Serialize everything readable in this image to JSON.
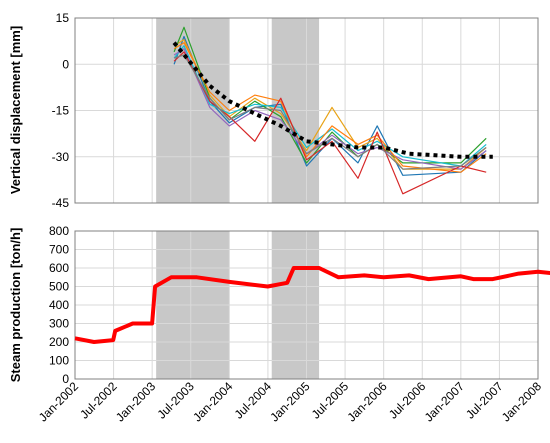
{
  "chart_data": [
    {
      "type": "line",
      "ylabel": "Vertical displacement [mm]",
      "ylim": [
        -45,
        15
      ],
      "yticks": [
        15,
        0,
        -15,
        -30,
        -45
      ],
      "xlim": [
        "2002-01-01",
        "2008-01-01"
      ],
      "grid": true,
      "shaded_periods": [
        [
          "2003-01-20",
          "2004-01-01"
        ],
        [
          "2004-07-20",
          "2005-03-01"
        ]
      ],
      "series": [
        {
          "color": "#1f77b4",
          "values": [
            [
              "2003-04-15",
              0
            ],
            [
              "2003-06-01",
              9
            ],
            [
              "2003-10-01",
              -12
            ],
            [
              "2004-01-01",
              -19
            ],
            [
              "2004-05-01",
              -14
            ],
            [
              "2004-09-01",
              -13
            ],
            [
              "2005-01-01",
              -33
            ],
            [
              "2005-05-01",
              -24
            ],
            [
              "2005-09-01",
              -32
            ],
            [
              "2005-12-01",
              -20
            ],
            [
              "2006-04-01",
              -36
            ],
            [
              "2007-01-01",
              -35
            ],
            [
              "2007-05-01",
              -28
            ]
          ]
        },
        {
          "color": "#e8a317",
          "values": [
            [
              "2003-04-15",
              6
            ],
            [
              "2003-06-01",
              8
            ],
            [
              "2003-10-01",
              -10
            ],
            [
              "2004-01-01",
              -17
            ],
            [
              "2004-05-01",
              -11
            ],
            [
              "2004-09-01",
              -16
            ],
            [
              "2005-01-01",
              -28
            ],
            [
              "2005-05-01",
              -14
            ],
            [
              "2005-09-01",
              -27
            ],
            [
              "2005-12-01",
              -24
            ],
            [
              "2006-04-01",
              -34
            ],
            [
              "2007-01-01",
              -34
            ],
            [
              "2007-05-01",
              -27
            ]
          ]
        },
        {
          "color": "#2ca02c",
          "values": [
            [
              "2003-04-15",
              4
            ],
            [
              "2003-06-01",
              12
            ],
            [
              "2003-10-01",
              -11
            ],
            [
              "2004-01-01",
              -18
            ],
            [
              "2004-05-01",
              -12
            ],
            [
              "2004-09-01",
              -17
            ],
            [
              "2005-01-01",
              -32
            ],
            [
              "2005-05-01",
              -22
            ],
            [
              "2005-09-01",
              -30
            ],
            [
              "2005-12-01",
              -26
            ],
            [
              "2006-04-01",
              -32
            ],
            [
              "2007-01-01",
              -32
            ],
            [
              "2007-05-01",
              -24
            ]
          ]
        },
        {
          "color": "#17becf",
          "values": [
            [
              "2003-04-15",
              2
            ],
            [
              "2003-06-01",
              6
            ],
            [
              "2003-10-01",
              -13
            ],
            [
              "2004-01-01",
              -16
            ],
            [
              "2004-05-01",
              -13
            ],
            [
              "2004-09-01",
              -14
            ],
            [
              "2005-01-01",
              -27
            ],
            [
              "2005-05-01",
              -21
            ],
            [
              "2005-09-01",
              -28
            ],
            [
              "2005-12-01",
              -25
            ],
            [
              "2006-04-01",
              -30
            ],
            [
              "2007-01-01",
              -33
            ],
            [
              "2007-05-01",
              -26
            ]
          ]
        },
        {
          "color": "#9467bd",
          "values": [
            [
              "2003-04-15",
              3
            ],
            [
              "2003-06-01",
              5
            ],
            [
              "2003-10-01",
              -14
            ],
            [
              "2004-01-01",
              -20
            ],
            [
              "2004-05-01",
              -15
            ],
            [
              "2004-09-01",
              -18
            ],
            [
              "2005-01-01",
              -29
            ],
            [
              "2005-05-01",
              -23
            ],
            [
              "2005-09-01",
              -29
            ],
            [
              "2005-12-01",
              -27
            ],
            [
              "2006-04-01",
              -31
            ],
            [
              "2007-01-01",
              -34
            ],
            [
              "2007-05-01",
              -28
            ]
          ]
        },
        {
          "color": "#ff7f0e",
          "values": [
            [
              "2003-04-15",
              5
            ],
            [
              "2003-06-01",
              7
            ],
            [
              "2003-10-01",
              -9
            ],
            [
              "2004-01-01",
              -15
            ],
            [
              "2004-05-01",
              -10
            ],
            [
              "2004-09-01",
              -12
            ],
            [
              "2005-01-01",
              -30
            ],
            [
              "2005-05-01",
              -20
            ],
            [
              "2005-09-01",
              -26
            ],
            [
              "2005-12-01",
              -23
            ],
            [
              "2006-04-01",
              -33
            ],
            [
              "2007-01-01",
              -35
            ],
            [
              "2007-05-01",
              -29
            ]
          ]
        },
        {
          "color": "#d62728",
          "values": [
            [
              "2003-04-15",
              1
            ],
            [
              "2003-06-01",
              4
            ],
            [
              "2003-10-01",
              -12
            ],
            [
              "2004-01-01",
              -17
            ],
            [
              "2004-05-01",
              -25
            ],
            [
              "2004-09-01",
              -11
            ],
            [
              "2005-01-01",
              -31
            ],
            [
              "2005-05-01",
              -25
            ],
            [
              "2005-09-01",
              -37
            ],
            [
              "2005-12-01",
              -22
            ],
            [
              "2006-04-01",
              -42
            ],
            [
              "2007-01-01",
              -33
            ],
            [
              "2007-05-01",
              -35
            ]
          ]
        },
        {
          "color": "#7f7f7f",
          "values": [
            [
              "2003-04-15",
              2
            ],
            [
              "2003-06-01",
              3
            ],
            [
              "2003-10-01",
              -11
            ],
            [
              "2004-01-01",
              -18
            ],
            [
              "2004-05-01",
              -14
            ],
            [
              "2004-09-01",
              -15
            ],
            [
              "2005-01-01",
              -29
            ],
            [
              "2005-05-01",
              -24
            ],
            [
              "2005-09-01",
              -30
            ],
            [
              "2005-12-01",
              -26
            ],
            [
              "2006-04-01",
              -34
            ],
            [
              "2007-01-01",
              -33
            ],
            [
              "2007-05-01",
              -27
            ]
          ]
        },
        {
          "color": "#000000",
          "dashed": true,
          "values": [
            [
              "2003-04-15",
              7
            ],
            [
              "2003-10-01",
              -7
            ],
            [
              "2004-01-01",
              -12
            ],
            [
              "2004-05-01",
              -16
            ],
            [
              "2004-09-01",
              -20
            ],
            [
              "2005-01-01",
              -25
            ],
            [
              "2005-05-01",
              -26
            ],
            [
              "2005-09-01",
              -27
            ],
            [
              "2006-01-01",
              -27
            ],
            [
              "2006-05-01",
              -29
            ],
            [
              "2007-01-01",
              -30
            ],
            [
              "2007-06-01",
              -30
            ]
          ]
        }
      ]
    },
    {
      "type": "line",
      "ylabel": "Steam production [ton/h]",
      "ylim": [
        0,
        800
      ],
      "yticks": [
        800,
        700,
        600,
        500,
        400,
        300,
        200,
        100,
        0
      ],
      "xlim": [
        "2002-01-01",
        "2008-01-01"
      ],
      "xticks": [
        "Jan-2002",
        "Jul-2002",
        "Jan-2003",
        "Jul-2003",
        "Jan-2004",
        "Jul-2004",
        "Jan-2005",
        "Jul-2005",
        "Jan-2006",
        "Jul-2006",
        "Jan-2007",
        "Jul-2007",
        "Jan-2008"
      ],
      "grid": true,
      "shaded_periods": [
        [
          "2003-01-20",
          "2004-01-01"
        ],
        [
          "2004-07-20",
          "2005-03-01"
        ]
      ],
      "series": [
        {
          "color": "#ff0000",
          "values": [
            [
              "2002-01-01",
              220
            ],
            [
              "2002-04-01",
              200
            ],
            [
              "2002-07-01",
              210
            ],
            [
              "2002-07-10",
              260
            ],
            [
              "2002-10-01",
              300
            ],
            [
              "2003-01-01",
              300
            ],
            [
              "2003-01-15",
              500
            ],
            [
              "2003-04-01",
              550
            ],
            [
              "2003-08-01",
              550
            ],
            [
              "2004-01-01",
              525
            ],
            [
              "2004-07-01",
              500
            ],
            [
              "2004-10-01",
              520
            ],
            [
              "2004-11-01",
              600
            ],
            [
              "2005-03-01",
              600
            ],
            [
              "2005-06-01",
              550
            ],
            [
              "2005-10-01",
              560
            ],
            [
              "2006-01-01",
              550
            ],
            [
              "2006-05-01",
              560
            ],
            [
              "2006-08-01",
              540
            ],
            [
              "2007-01-01",
              555
            ],
            [
              "2007-03-01",
              540
            ],
            [
              "2007-06-01",
              540
            ],
            [
              "2007-10-01",
              570
            ],
            [
              "2008-01-01",
              580
            ],
            [
              "2008-05-01",
              565
            ]
          ]
        }
      ]
    }
  ]
}
